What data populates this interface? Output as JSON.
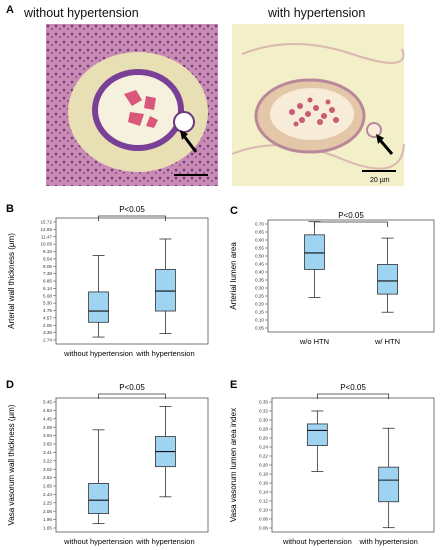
{
  "panel_a": {
    "letter": "A",
    "left_title": "without hypertension",
    "right_title": "with hypertension",
    "right_scalebar": "20 µm",
    "colors": {
      "left_bg": "#c97fae",
      "right_bg": "#f3efc9",
      "tissue": "#d8cfa0",
      "stain": "#6b3a8f"
    }
  },
  "chart_data": [
    {
      "id": "B",
      "type": "boxplot",
      "pvalue": "P<0.05",
      "ylabel": "Arterial wall thickness (μm)",
      "ylim": [
        2.2,
        16.72
      ],
      "yticks": [
        "2.74",
        "3.36",
        "4.06",
        "4.57",
        "4.75",
        "5.30",
        "5.68",
        "6.14",
        "6.85",
        "7.38",
        "8.06",
        "8.54",
        "9.33",
        "10.05",
        "11.47",
        "12.65",
        "15.72"
      ],
      "categories": [
        "without hypertension",
        "with hypertension"
      ],
      "boxes": [
        {
          "min": 3.0,
          "q1": 4.7,
          "median": 6.0,
          "q3": 8.2,
          "max": 12.4
        },
        {
          "min": 3.4,
          "q1": 6.0,
          "median": 8.3,
          "q3": 10.8,
          "max": 14.3
        }
      ],
      "box_color": "#9fd3f2"
    },
    {
      "id": "C",
      "type": "boxplot",
      "pvalue": "P<0.05",
      "ylabel": "Arterial lumen area",
      "ylim": [
        0.04,
        0.72
      ],
      "yticks": [
        "0.05",
        "0.10",
        "0.15",
        "0.20",
        "0.25",
        "0.30",
        "0.35",
        "0.40",
        "0.45",
        "0.50",
        "0.55",
        "0.60",
        "0.65",
        "0.70"
      ],
      "categories": [
        "w/o HTN",
        "w/ HTN"
      ],
      "boxes": [
        {
          "min": 0.25,
          "q1": 0.42,
          "median": 0.52,
          "q3": 0.63,
          "max": 0.71
        },
        {
          "min": 0.16,
          "q1": 0.27,
          "median": 0.35,
          "q3": 0.45,
          "max": 0.61
        }
      ],
      "box_color": "#9fd3f2"
    },
    {
      "id": "D",
      "type": "boxplot",
      "pvalue": "P<0.05",
      "ylabel": "Vasa vasorum wall thickness (μm)",
      "ylim": [
        1.55,
        5.55
      ],
      "yticks": [
        "1.65",
        "1.96",
        "2.08",
        "2.25",
        "2.44",
        "2.65",
        "2.82",
        "3.02",
        "3.22",
        "3.41",
        "3.65",
        "3.94",
        "4.09",
        "4.45",
        "4.83",
        "5.45"
      ],
      "categories": [
        "without hypertension",
        "with hypertension"
      ],
      "boxes": [
        {
          "min": 1.8,
          "q1": 2.1,
          "median": 2.5,
          "q3": 3.0,
          "max": 4.6
        },
        {
          "min": 2.6,
          "q1": 3.5,
          "median": 3.95,
          "q3": 4.4,
          "max": 5.3
        }
      ],
      "box_color": "#9fd3f2"
    },
    {
      "id": "E",
      "type": "boxplot",
      "pvalue": "P<0.05",
      "ylabel": "Vasa vasorum lumen area index",
      "ylim": [
        0.05,
        0.36
      ],
      "yticks": [
        "0.06",
        "0.08",
        "0.10",
        "0.12",
        "0.14",
        "0.16",
        "0.18",
        "0.20",
        "0.22",
        "0.24",
        "0.26",
        "0.28",
        "0.30",
        "0.32",
        "0.35"
      ],
      "categories": [
        "without hypertension",
        "with hypertension"
      ],
      "boxes": [
        {
          "min": 0.19,
          "q1": 0.25,
          "median": 0.285,
          "q3": 0.3,
          "max": 0.33
        },
        {
          "min": 0.06,
          "q1": 0.12,
          "median": 0.17,
          "q3": 0.2,
          "max": 0.29
        }
      ],
      "box_color": "#9fd3f2"
    }
  ]
}
